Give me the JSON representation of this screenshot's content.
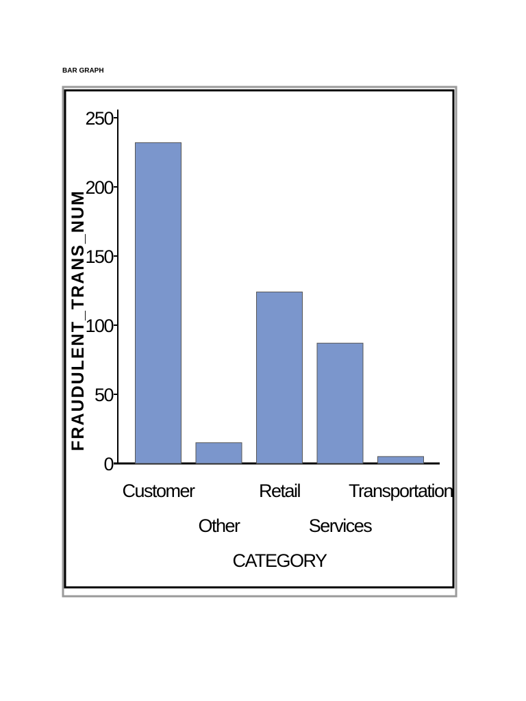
{
  "heading": "BAR GRAPH",
  "chart_data": {
    "type": "bar",
    "x_label": "CATEGORY",
    "y_label": "FRAUDULENT_TRANS_NUM",
    "categories": [
      "Customer",
      "Other",
      "Retail",
      "Services",
      "Transportation"
    ],
    "values": [
      232,
      15,
      124,
      87,
      5
    ],
    "color": "#7b96cc",
    "ylim": [
      0,
      250
    ],
    "yticks": [
      0,
      50,
      100,
      150,
      200,
      250
    ],
    "grid": false
  }
}
